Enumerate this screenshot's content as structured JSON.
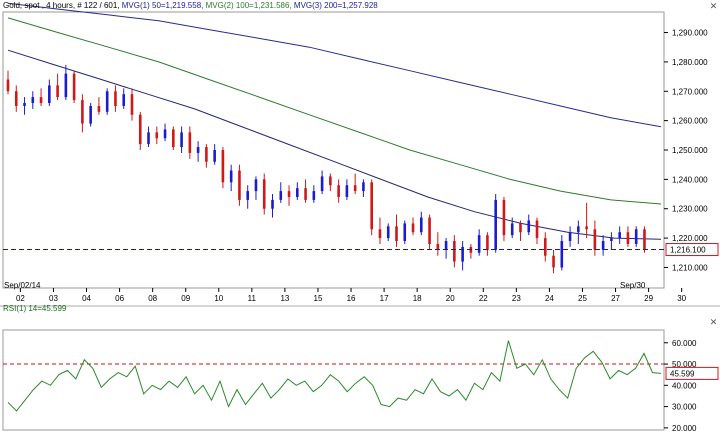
{
  "header": {
    "symbol": "Gold, spot , 4 hours, # 122 / 601,",
    "ma1": "MVG(1) 50=1,219.558,",
    "ma2": "MVG(2) 100=1,231.586,",
    "ma3": "MVG(3) 200=1,257.928"
  },
  "rsi_title": "RSI(1) 14=45.599",
  "colors": {
    "bull": "#1c1ccf",
    "bear": "#d01818",
    "ma50": "#24247a",
    "ma100": "#2f7a2f",
    "ma200": "#2a2a88",
    "rsi": "#2a8a2a",
    "price_line": "#1c1c8a",
    "rsi50_line": "#cc1010"
  },
  "chart_data": [
    {
      "type": "candlestick",
      "y_ticks": [
        "1,210.000",
        "1,220.000",
        "1,230.000",
        "1,240.000",
        "1,250.000",
        "1,260.000",
        "1,270.000",
        "1,280.000",
        "1,290.000"
      ],
      "y_tick_values": [
        1210,
        1220,
        1230,
        1240,
        1250,
        1260,
        1270,
        1280,
        1290
      ],
      "ylim": [
        1203,
        1297
      ],
      "x_ticks": [
        "02",
        "03",
        "04",
        "06",
        "08",
        "09",
        "10",
        "11",
        "13",
        "15",
        "16",
        "17",
        "18",
        "20",
        "22",
        "23",
        "24",
        "25",
        "27",
        "29",
        "30"
      ],
      "x_tick_positions": [
        1.5,
        5.5,
        9.5,
        13.5,
        17.5,
        21.5,
        25.5,
        29.5,
        33.5,
        37.5,
        41.5,
        45.5,
        49.5,
        53.5,
        57.5,
        61.5,
        65.5,
        69.5,
        73.5,
        77.5,
        81.5
      ],
      "date_labels": [
        "Sep/02/14",
        "Sep/30"
      ],
      "current_price_label": "1,216.100",
      "current_price": 1216.1,
      "ohlc": [
        [
          1274,
          1277,
          1269,
          1270
        ],
        [
          1270,
          1272,
          1263,
          1265
        ],
        [
          1265,
          1268,
          1262,
          1266
        ],
        [
          1266,
          1270,
          1264,
          1268
        ],
        [
          1268,
          1271,
          1265,
          1266
        ],
        [
          1266,
          1274,
          1265,
          1272
        ],
        [
          1272,
          1276,
          1267,
          1268
        ],
        [
          1268,
          1279,
          1267,
          1276
        ],
        [
          1276,
          1277,
          1266,
          1267
        ],
        [
          1267,
          1269,
          1256,
          1259
        ],
        [
          1259,
          1266,
          1258,
          1265
        ],
        [
          1265,
          1268,
          1262,
          1263
        ],
        [
          1263,
          1271,
          1262,
          1270
        ],
        [
          1270,
          1272,
          1263,
          1265
        ],
        [
          1265,
          1271,
          1264,
          1269
        ],
        [
          1269,
          1271,
          1260,
          1262
        ],
        [
          1262,
          1263,
          1250,
          1252
        ],
        [
          1252,
          1258,
          1251,
          1256
        ],
        [
          1256,
          1258,
          1252,
          1254
        ],
        [
          1254,
          1259,
          1253,
          1257
        ],
        [
          1257,
          1258,
          1250,
          1251
        ],
        [
          1251,
          1258,
          1249,
          1256
        ],
        [
          1256,
          1258,
          1247,
          1249
        ],
        [
          1249,
          1253,
          1246,
          1251
        ],
        [
          1251,
          1252,
          1244,
          1246
        ],
        [
          1246,
          1252,
          1245,
          1250
        ],
        [
          1250,
          1251,
          1237,
          1239
        ],
        [
          1239,
          1245,
          1236,
          1243
        ],
        [
          1243,
          1245,
          1231,
          1233
        ],
        [
          1233,
          1238,
          1230,
          1236
        ],
        [
          1236,
          1241,
          1233,
          1240
        ],
        [
          1240,
          1242,
          1228,
          1230
        ],
        [
          1230,
          1235,
          1227,
          1233
        ],
        [
          1233,
          1239,
          1232,
          1236
        ],
        [
          1236,
          1238,
          1231,
          1234
        ],
        [
          1234,
          1239,
          1233,
          1237
        ],
        [
          1237,
          1240,
          1232,
          1233
        ],
        [
          1233,
          1238,
          1232,
          1236
        ],
        [
          1236,
          1243,
          1235,
          1241
        ],
        [
          1241,
          1242,
          1236,
          1238
        ],
        [
          1238,
          1240,
          1232,
          1234
        ],
        [
          1234,
          1240,
          1233,
          1238
        ],
        [
          1238,
          1242,
          1235,
          1236
        ],
        [
          1236,
          1240,
          1234,
          1239
        ],
        [
          1239,
          1240,
          1221,
          1223
        ],
        [
          1223,
          1227,
          1218,
          1220
        ],
        [
          1220,
          1225,
          1219,
          1224
        ],
        [
          1224,
          1228,
          1217,
          1219
        ],
        [
          1219,
          1226,
          1218,
          1225
        ],
        [
          1225,
          1227,
          1221,
          1222
        ],
        [
          1222,
          1229,
          1221,
          1227
        ],
        [
          1227,
          1228,
          1216,
          1218
        ],
        [
          1218,
          1222,
          1214,
          1216
        ],
        [
          1216,
          1220,
          1213,
          1219
        ],
        [
          1219,
          1221,
          1210,
          1212
        ],
        [
          1212,
          1219,
          1209,
          1217
        ],
        [
          1217,
          1218,
          1213,
          1215
        ],
        [
          1215,
          1223,
          1214,
          1221
        ],
        [
          1221,
          1222,
          1214,
          1216
        ],
        [
          1216,
          1235,
          1215,
          1233
        ],
        [
          1233,
          1234,
          1219,
          1221
        ],
        [
          1221,
          1227,
          1220,
          1225
        ],
        [
          1225,
          1226,
          1219,
          1222
        ],
        [
          1222,
          1228,
          1221,
          1226
        ],
        [
          1226,
          1227,
          1218,
          1220
        ],
        [
          1220,
          1222,
          1212,
          1214
        ],
        [
          1214,
          1216,
          1208,
          1210
        ],
        [
          1210,
          1221,
          1209,
          1219
        ],
        [
          1219,
          1224,
          1217,
          1222
        ],
        [
          1222,
          1226,
          1218,
          1224
        ],
        [
          1224,
          1232,
          1220,
          1223
        ],
        [
          1223,
          1226,
          1214,
          1216
        ],
        [
          1216,
          1221,
          1214,
          1219
        ],
        [
          1219,
          1222,
          1216,
          1220
        ],
        [
          1220,
          1224,
          1218,
          1222
        ],
        [
          1222,
          1224,
          1217,
          1218
        ],
        [
          1218,
          1224,
          1217,
          1223
        ],
        [
          1223,
          1224,
          1215,
          1216
        ]
      ],
      "ma50": [
        1284,
        1279,
        1274,
        1269,
        1264,
        1258,
        1252,
        1246,
        1240,
        1234,
        1229,
        1225,
        1222,
        1220,
        1219.6
      ],
      "ma100": [
        1295,
        1290,
        1285,
        1280,
        1274,
        1268,
        1262,
        1256,
        1250,
        1245,
        1240,
        1236,
        1233,
        1231.6
      ],
      "ma200": [
        1300,
        1298,
        1296,
        1294,
        1291,
        1288,
        1285,
        1281,
        1277,
        1273,
        1269,
        1265,
        1261,
        1257.9
      ]
    },
    {
      "type": "line",
      "name": "RSI(1) 14",
      "y_ticks": [
        "20.000",
        "30.000",
        "40.000",
        "50.000",
        "60.000"
      ],
      "y_tick_values": [
        20,
        30,
        40,
        50,
        60
      ],
      "ylim": [
        19,
        66
      ],
      "reference_line": 50,
      "current_label": "45.599",
      "values": [
        32,
        28,
        33,
        38,
        42,
        40,
        45,
        47,
        43,
        52,
        48,
        39,
        43,
        46,
        44,
        49,
        36,
        40,
        38,
        42,
        39,
        44,
        36,
        40,
        33,
        42,
        30,
        38,
        31,
        36,
        41,
        34,
        38,
        43,
        40,
        42,
        37,
        40,
        45,
        42,
        37,
        41,
        44,
        40,
        31,
        30,
        34,
        33,
        38,
        36,
        43,
        37,
        35,
        38,
        33,
        41,
        38,
        46,
        42,
        61,
        48,
        50,
        45,
        52,
        43,
        38,
        34,
        48,
        53,
        56,
        51,
        43,
        47,
        45,
        48,
        55,
        46,
        45.6
      ]
    }
  ]
}
